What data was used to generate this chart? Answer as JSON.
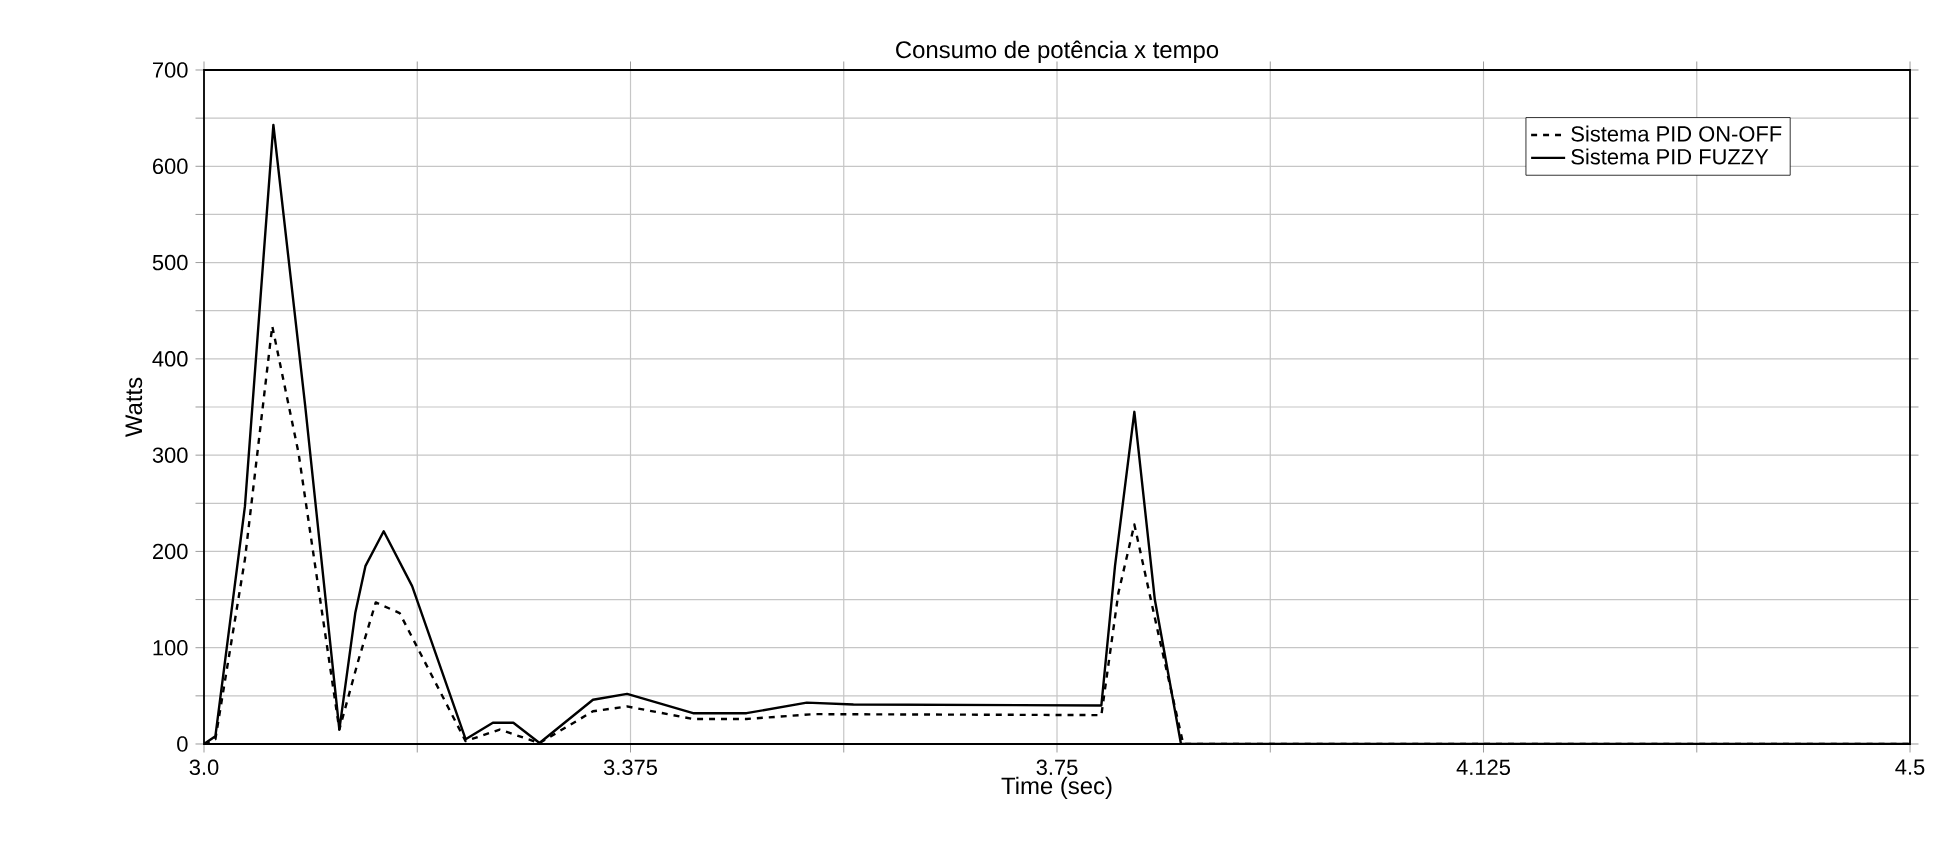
{
  "chart_data": {
    "type": "line",
    "title": "Consumo de potência x tempo",
    "xlabel": "Time (sec)",
    "ylabel": "Watts",
    "xlim": [
      3.0,
      4.5
    ],
    "ylim": [
      0,
      700
    ],
    "xticks": [
      {
        "value": 3.0,
        "label": "3.0"
      },
      {
        "value": 3.1875,
        "label": null
      },
      3.375,
      {
        "value": 3.5625,
        "label": null
      },
      3.75,
      {
        "value": 3.9375,
        "label": null
      },
      4.125,
      {
        "value": 4.3125,
        "label": null
      },
      4.5
    ],
    "yticks": [
      0,
      {
        "value": 50,
        "label": null
      },
      100,
      {
        "value": 150,
        "label": null
      },
      200,
      {
        "value": 250,
        "label": null
      },
      300,
      {
        "value": 350,
        "label": null
      },
      400,
      {
        "value": 450,
        "label": null
      },
      500,
      {
        "value": 550,
        "label": null
      },
      600,
      {
        "value": 650,
        "label": null
      },
      700
    ],
    "grid": true,
    "legend": "top right",
    "marker": "none",
    "series": [
      {
        "name": "Sistema PID ON-OFF",
        "color": "#000000",
        "line_style": "dashed",
        "x": [
          3.0,
          3.01,
          3.036,
          3.06,
          3.083,
          3.119,
          3.136,
          3.151,
          3.172,
          3.23,
          3.26,
          3.295,
          3.342,
          3.372,
          3.43,
          3.477,
          3.536,
          3.789,
          3.804,
          3.818,
          3.839,
          3.861,
          4.5
        ],
        "values": [
          0,
          5,
          192,
          434,
          303,
          15,
          88,
          147,
          136,
          3,
          15,
          1,
          34,
          39,
          26,
          26,
          31,
          30,
          157,
          228,
          115,
          0,
          0
        ]
      },
      {
        "name": "Sistema PID FUZZY",
        "color": "#000000",
        "line_style": "solid",
        "x": [
          3.0,
          3.01,
          3.036,
          3.061,
          3.089,
          3.119,
          3.133,
          3.142,
          3.158,
          3.183,
          3.23,
          3.254,
          3.272,
          3.295,
          3.342,
          3.372,
          3.43,
          3.477,
          3.53,
          3.571,
          3.789,
          3.801,
          3.818,
          3.836,
          3.859,
          4.5
        ],
        "values": [
          0,
          8,
          247,
          643,
          351,
          15,
          136,
          185,
          221,
          164,
          5,
          22,
          22,
          1,
          46,
          52,
          32,
          32,
          43,
          41,
          40,
          185,
          345,
          150,
          0,
          0
        ]
      }
    ]
  }
}
